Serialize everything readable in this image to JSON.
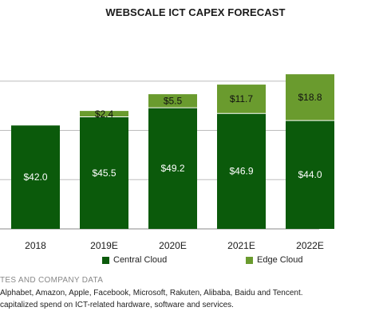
{
  "chart_data": {
    "type": "bar",
    "stacked": true,
    "title": "WEBSCALE ICT CAPEX FORECAST",
    "categories": [
      "2018",
      "2019E",
      "2020E",
      "2021E",
      "2022E"
    ],
    "series": [
      {
        "name": "Central Cloud",
        "color": "#0b5a0b",
        "values": [
          42.0,
          45.5,
          49.2,
          46.9,
          44.0
        ],
        "labels": [
          "$42.0",
          "$45.5",
          "$49.2",
          "$46.9",
          "$44.0"
        ]
      },
      {
        "name": "Edge Cloud",
        "color": "#6a9b2e",
        "values": [
          0,
          2.4,
          5.5,
          11.7,
          18.8
        ],
        "labels": [
          "",
          "$2.4",
          "$5.5",
          "$11.7",
          "$18.8"
        ]
      }
    ],
    "ylim": [
      0,
      80
    ],
    "grid": true,
    "legend_position": "bottom"
  },
  "footnotes": {
    "source": "TES AND COMPANY DATA",
    "companies": "Alphabet, Amazon, Apple, Facebook, Microsoft, Rakuten, Alibaba, Baidu and Tencent.",
    "definition": "capitalized spend on ICT-related hardware, software and services."
  }
}
